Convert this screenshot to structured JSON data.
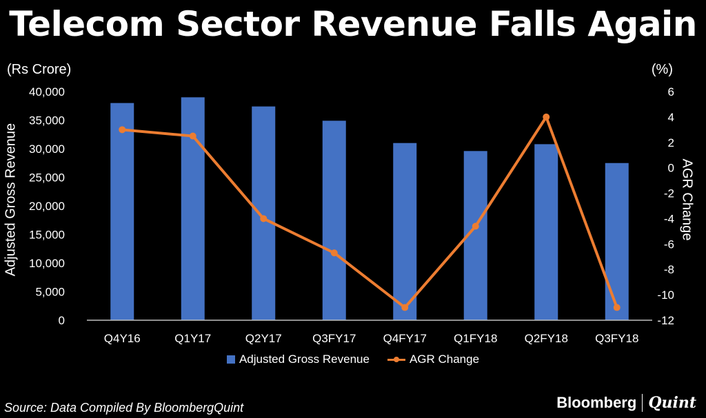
{
  "title": "Telecom Sector Revenue Falls Again",
  "unit_left": "(Rs Crore)",
  "unit_right": "(%)",
  "ylabel_left": "Adjusted Gross Revenue",
  "ylabel_right": "AGR Change",
  "source": "Source: Data Compiled By BloombergQuint",
  "brand": {
    "primary": "Bloomberg",
    "secondary": "Quint"
  },
  "colors": {
    "bar": "#4472C4",
    "line": "#ED7D31",
    "background": "#000000",
    "text": "#FFFFFF"
  },
  "chart_data": {
    "type": "bar+line",
    "title": "Telecom Sector Revenue Falls Again",
    "categories": [
      "Q4Y16",
      "Q1Y17",
      "Q2Y17",
      "Q3FY17",
      "Q4FY17",
      "Q1FY18",
      "Q2FY18",
      "Q3FY18"
    ],
    "series": [
      {
        "name": "Adjusted Gross Revenue",
        "type": "bar",
        "axis": "left",
        "values": [
          38000,
          39000,
          37400,
          34900,
          31000,
          29600,
          30800,
          27500
        ]
      },
      {
        "name": "AGR Change",
        "type": "line",
        "axis": "right",
        "values": [
          3.0,
          2.5,
          -4.0,
          -6.7,
          -11.0,
          -4.6,
          4.0,
          -11.0
        ]
      }
    ],
    "ylabel": "Adjusted Gross Revenue",
    "y2label": "AGR Change",
    "ylim": [
      0,
      40000
    ],
    "yticks": [
      "0",
      "5,000",
      "10,000",
      "15,000",
      "20,000",
      "25,000",
      "30,000",
      "35,000",
      "40,000"
    ],
    "y2lim": [
      -12,
      6
    ],
    "y2ticks": [
      "-12",
      "-10",
      "-8",
      "-6",
      "-4",
      "-2",
      "0",
      "2",
      "4",
      "6"
    ],
    "grid": false,
    "legend": "bottom"
  }
}
